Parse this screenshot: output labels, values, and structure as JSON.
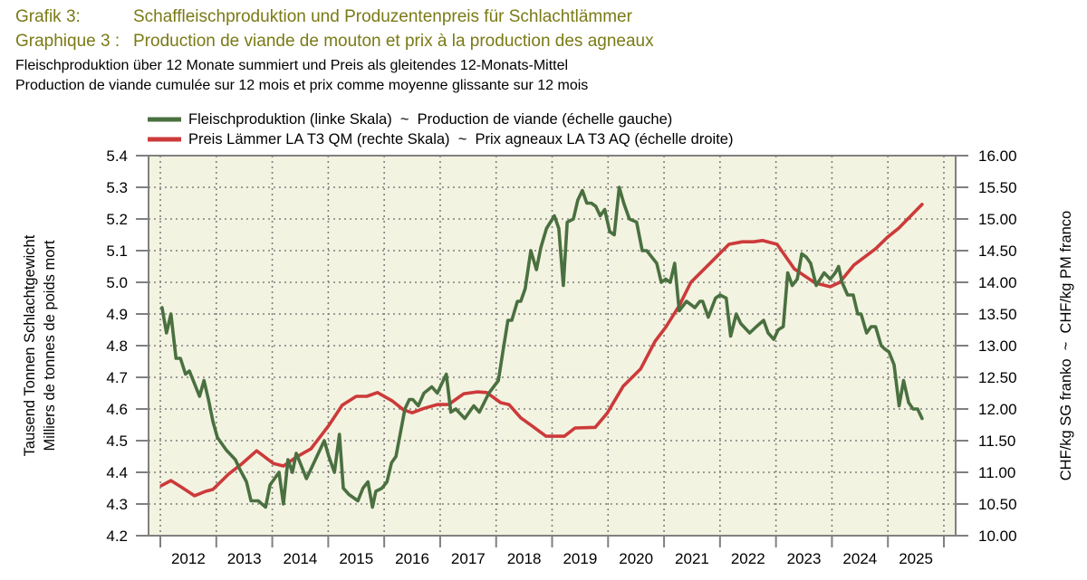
{
  "header": {
    "label_de": "Grafik 3:",
    "title_de": "Schaffleischproduktion und Produzentenpreis für Schlachtlämmer",
    "label_fr": "Graphique 3 :",
    "title_fr": "Production de viande de mouton et prix à la production des agneaux",
    "subtitle_de": "Fleischproduktion über 12 Monate summiert und Preis als gleitendes 12-Monats-Mittel",
    "subtitle_fr": "Production de viande cumulée sur 12 mois et prix comme moyenne glissante sur 12 mois"
  },
  "colors": {
    "title": "#7a7a16",
    "production": "#4a7040",
    "price": "#cc3a3a",
    "plot_bg": "#f3f3e1",
    "grid": "#808080"
  },
  "chart_data": {
    "type": "line",
    "title": "Schaffleischproduktion und Produzentenpreis für Schlachtlämmer",
    "legend_position": "top",
    "legend": [
      "Fleischproduktion (linke Skala)  ~  Production de viande (échelle gauche)",
      "Preis Lämmer LA T3 QM (rechte Skala)  ~  Prix agneaux LA T3 AQ (échelle droite)"
    ],
    "ylabel_left": [
      "Tausend Tonnen Schlachtgewicht",
      "Milliers de tonnes de poids mort"
    ],
    "ylabel_right": "CHF/kg SG franko  ~  CHF/kg PM franco",
    "xlim": [
      2012,
      2026
    ],
    "ylim_left": [
      4.2,
      5.4
    ],
    "ylim_right": [
      10.0,
      16.0
    ],
    "grid": true,
    "x_tick_labels": [
      "2012",
      "2013",
      "2014",
      "2015",
      "2016",
      "2017",
      "2018",
      "2019",
      "2020",
      "2021",
      "2022",
      "2023",
      "2024",
      "2025"
    ],
    "y_left_tick_labels": [
      "4.2",
      "4.3",
      "4.4",
      "4.5",
      "4.6",
      "4.7",
      "4.8",
      "4.9",
      "5.0",
      "5.1",
      "5.2",
      "5.3",
      "5.4"
    ],
    "y_right_tick_labels": [
      "10.00",
      "10.50",
      "11.00",
      "11.50",
      "12.00",
      "12.50",
      "13.00",
      "13.50",
      "14.00",
      "14.50",
      "15.00",
      "15.50",
      "16.00"
    ],
    "series": [
      {
        "name": "Fleischproduktion",
        "axis": "left",
        "points": [
          [
            2012.03,
            4.92
          ],
          [
            2012.11,
            4.84
          ],
          [
            2012.19,
            4.9
          ],
          [
            2012.28,
            4.76
          ],
          [
            2012.36,
            4.76
          ],
          [
            2012.45,
            4.71
          ],
          [
            2012.52,
            4.72
          ],
          [
            2012.7,
            4.64
          ],
          [
            2012.78,
            4.69
          ],
          [
            2012.86,
            4.63
          ],
          [
            2012.94,
            4.56
          ],
          [
            2013.02,
            4.51
          ],
          [
            2013.18,
            4.47
          ],
          [
            2013.34,
            4.44
          ],
          [
            2013.42,
            4.41
          ],
          [
            2013.54,
            4.37
          ],
          [
            2013.62,
            4.31
          ],
          [
            2013.75,
            4.31
          ],
          [
            2013.88,
            4.29
          ],
          [
            2013.96,
            4.36
          ],
          [
            2014.12,
            4.4
          ],
          [
            2014.2,
            4.3
          ],
          [
            2014.28,
            4.44
          ],
          [
            2014.36,
            4.4
          ],
          [
            2014.43,
            4.46
          ],
          [
            2014.61,
            4.38
          ],
          [
            2014.93,
            4.5
          ],
          [
            2015.01,
            4.45
          ],
          [
            2015.11,
            4.4
          ],
          [
            2015.2,
            4.52
          ],
          [
            2015.27,
            4.35
          ],
          [
            2015.37,
            4.33
          ],
          [
            2015.53,
            4.31
          ],
          [
            2015.62,
            4.35
          ],
          [
            2015.71,
            4.37
          ],
          [
            2015.79,
            4.29
          ],
          [
            2015.85,
            4.34
          ],
          [
            2015.96,
            4.35
          ],
          [
            2016.05,
            4.37
          ],
          [
            2016.13,
            4.43
          ],
          [
            2016.21,
            4.45
          ],
          [
            2016.37,
            4.6
          ],
          [
            2016.45,
            4.63
          ],
          [
            2016.51,
            4.63
          ],
          [
            2016.61,
            4.61
          ],
          [
            2016.71,
            4.65
          ],
          [
            2016.85,
            4.67
          ],
          [
            2016.95,
            4.65
          ],
          [
            2017.11,
            4.71
          ],
          [
            2017.19,
            4.59
          ],
          [
            2017.28,
            4.6
          ],
          [
            2017.44,
            4.57
          ],
          [
            2017.6,
            4.61
          ],
          [
            2017.7,
            4.59
          ],
          [
            2017.87,
            4.65
          ],
          [
            2018.04,
            4.69
          ],
          [
            2018.12,
            4.78
          ],
          [
            2018.21,
            4.88
          ],
          [
            2018.28,
            4.88
          ],
          [
            2018.38,
            4.94
          ],
          [
            2018.44,
            4.94
          ],
          [
            2018.52,
            4.98
          ],
          [
            2018.62,
            5.1
          ],
          [
            2018.72,
            5.04
          ],
          [
            2018.8,
            5.11
          ],
          [
            2018.9,
            5.17
          ],
          [
            2019.04,
            5.21
          ],
          [
            2019.12,
            5.17
          ],
          [
            2019.2,
            4.99
          ],
          [
            2019.27,
            5.19
          ],
          [
            2019.38,
            5.2
          ],
          [
            2019.46,
            5.26
          ],
          [
            2019.54,
            5.29
          ],
          [
            2019.62,
            5.25
          ],
          [
            2019.7,
            5.25
          ],
          [
            2019.78,
            5.24
          ],
          [
            2019.86,
            5.21
          ],
          [
            2019.94,
            5.23
          ],
          [
            2020.03,
            5.16
          ],
          [
            2020.11,
            5.15
          ],
          [
            2020.2,
            5.3
          ],
          [
            2020.28,
            5.25
          ],
          [
            2020.38,
            5.2
          ],
          [
            2020.51,
            5.19
          ],
          [
            2020.61,
            5.1
          ],
          [
            2020.69,
            5.1
          ],
          [
            2020.87,
            5.06
          ],
          [
            2020.95,
            5.0
          ],
          [
            2021.03,
            5.01
          ],
          [
            2021.11,
            5.0
          ],
          [
            2021.19,
            5.06
          ],
          [
            2021.27,
            4.91
          ],
          [
            2021.4,
            4.94
          ],
          [
            2021.55,
            4.92
          ],
          [
            2021.64,
            4.94
          ],
          [
            2021.69,
            4.94
          ],
          [
            2021.79,
            4.89
          ],
          [
            2021.92,
            4.95
          ],
          [
            2022.0,
            4.96
          ],
          [
            2022.11,
            4.95
          ],
          [
            2022.19,
            4.83
          ],
          [
            2022.29,
            4.9
          ],
          [
            2022.37,
            4.87
          ],
          [
            2022.53,
            4.84
          ],
          [
            2022.65,
            4.86
          ],
          [
            2022.78,
            4.88
          ],
          [
            2022.86,
            4.84
          ],
          [
            2022.96,
            4.82
          ],
          [
            2023.04,
            4.85
          ],
          [
            2023.13,
            4.86
          ],
          [
            2023.21,
            5.03
          ],
          [
            2023.29,
            4.99
          ],
          [
            2023.38,
            5.01
          ],
          [
            2023.46,
            5.09
          ],
          [
            2023.54,
            5.08
          ],
          [
            2023.62,
            5.06
          ],
          [
            2023.72,
            4.99
          ],
          [
            2023.86,
            5.03
          ],
          [
            2023.97,
            5.01
          ],
          [
            2024.06,
            5.03
          ],
          [
            2024.12,
            5.05
          ],
          [
            2024.18,
            5.0
          ],
          [
            2024.28,
            4.96
          ],
          [
            2024.38,
            4.96
          ],
          [
            2024.46,
            4.9
          ],
          [
            2024.52,
            4.9
          ],
          [
            2024.62,
            4.84
          ],
          [
            2024.7,
            4.86
          ],
          [
            2024.78,
            4.86
          ],
          [
            2024.88,
            4.8
          ],
          [
            2024.94,
            4.79
          ],
          [
            2025.02,
            4.78
          ],
          [
            2025.11,
            4.74
          ],
          [
            2025.2,
            4.61
          ],
          [
            2025.28,
            4.69
          ],
          [
            2025.37,
            4.62
          ],
          [
            2025.45,
            4.6
          ],
          [
            2025.53,
            4.6
          ],
          [
            2025.61,
            4.57
          ]
        ]
      },
      {
        "name": "Preis Lämmer LA T3 QM",
        "axis": "right",
        "points": [
          [
            2012.02,
            10.79
          ],
          [
            2012.19,
            10.87
          ],
          [
            2012.37,
            10.77
          ],
          [
            2012.61,
            10.63
          ],
          [
            2012.81,
            10.7
          ],
          [
            2012.94,
            10.73
          ],
          [
            2013.23,
            10.98
          ],
          [
            2013.45,
            11.13
          ],
          [
            2013.72,
            11.34
          ],
          [
            2014.02,
            11.14
          ],
          [
            2014.2,
            11.1
          ],
          [
            2014.43,
            11.24
          ],
          [
            2014.69,
            11.37
          ],
          [
            2015.01,
            11.74
          ],
          [
            2015.25,
            12.06
          ],
          [
            2015.5,
            12.2
          ],
          [
            2015.69,
            12.2
          ],
          [
            2015.88,
            12.26
          ],
          [
            2016.14,
            12.13
          ],
          [
            2016.34,
            11.99
          ],
          [
            2016.5,
            11.94
          ],
          [
            2016.71,
            12.01
          ],
          [
            2016.95,
            12.07
          ],
          [
            2017.15,
            12.07
          ],
          [
            2017.42,
            12.24
          ],
          [
            2017.66,
            12.27
          ],
          [
            2017.83,
            12.26
          ],
          [
            2018.08,
            12.1
          ],
          [
            2018.23,
            12.07
          ],
          [
            2018.44,
            11.86
          ],
          [
            2018.63,
            11.74
          ],
          [
            2018.89,
            11.57
          ],
          [
            2019.22,
            11.57
          ],
          [
            2019.41,
            11.7
          ],
          [
            2019.77,
            11.71
          ],
          [
            2019.98,
            11.93
          ],
          [
            2020.27,
            12.36
          ],
          [
            2020.58,
            12.63
          ],
          [
            2020.84,
            13.07
          ],
          [
            2021.03,
            13.29
          ],
          [
            2021.27,
            13.63
          ],
          [
            2021.48,
            14.0
          ],
          [
            2021.81,
            14.29
          ],
          [
            2022.16,
            14.6
          ],
          [
            2022.4,
            14.64
          ],
          [
            2022.6,
            14.64
          ],
          [
            2022.76,
            14.66
          ],
          [
            2023.02,
            14.6
          ],
          [
            2023.33,
            14.21
          ],
          [
            2023.7,
            13.99
          ],
          [
            2023.97,
            13.93
          ],
          [
            2024.14,
            14.0
          ],
          [
            2024.39,
            14.27
          ],
          [
            2024.78,
            14.53
          ],
          [
            2024.99,
            14.71
          ],
          [
            2025.2,
            14.86
          ],
          [
            2025.61,
            15.23
          ]
        ]
      }
    ]
  }
}
